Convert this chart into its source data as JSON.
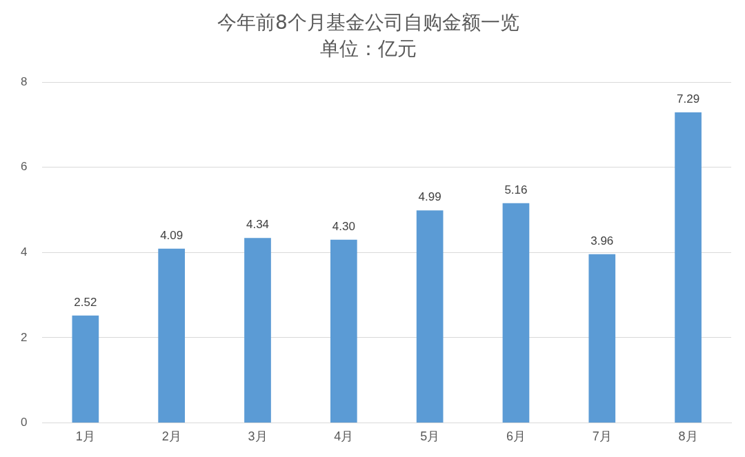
{
  "chart_data": {
    "type": "bar",
    "title": "今年前8个月基金公司自购金额一览",
    "subtitle": "单位：亿元",
    "categories": [
      "1月",
      "2月",
      "3月",
      "4月",
      "5月",
      "6月",
      "7月",
      "8月"
    ],
    "values": [
      2.52,
      4.09,
      4.34,
      4.3,
      4.99,
      5.16,
      3.96,
      7.29
    ],
    "value_labels": [
      "2.52",
      "4.09",
      "4.34",
      "4.30",
      "4.99",
      "5.16",
      "3.96",
      "7.29"
    ],
    "color": "#5b9bd5",
    "ylim": [
      0,
      8
    ],
    "yticks": [
      0,
      2,
      4,
      6,
      8
    ],
    "grid": "y",
    "legend": false
  }
}
